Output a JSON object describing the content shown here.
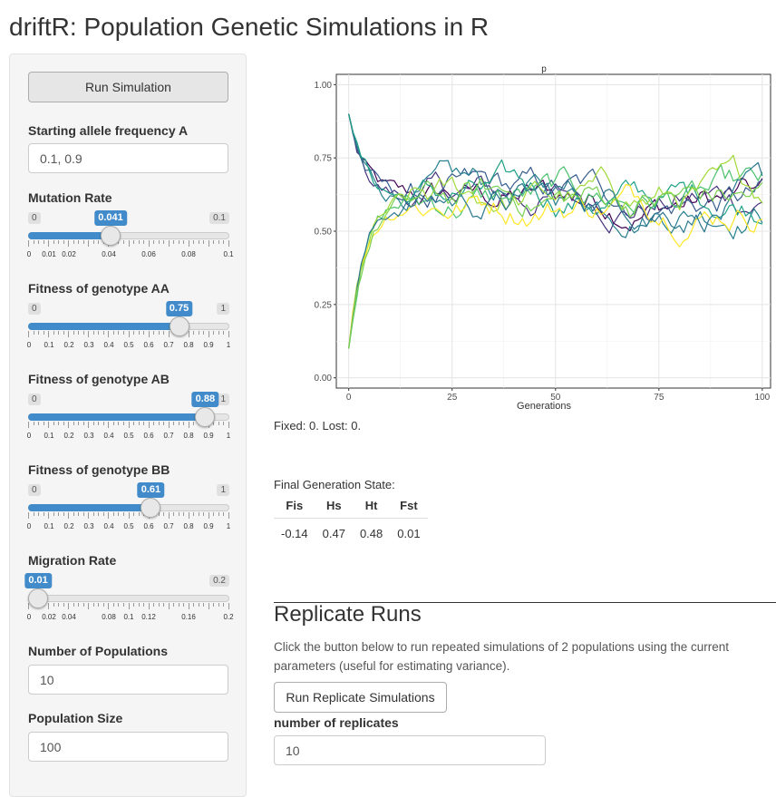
{
  "app_title": "driftR: Population Genetic Simulations in R",
  "sidebar": {
    "run_button": "Run Simulation",
    "start_freq": {
      "label": "Starting allele frequency A",
      "value": "0.1, 0.9"
    },
    "sliders": [
      {
        "label": "Mutation Rate",
        "min_label": "0",
        "max_label": "0.1",
        "value_label": "0.041",
        "fraction": 0.41,
        "ticks": [
          "0",
          "0.01",
          "0.02",
          "0.04",
          "0.06",
          "0.08",
          "0.1"
        ]
      },
      {
        "label": "Fitness of genotype AA",
        "min_label": "0",
        "max_label": "1",
        "value_label": "0.75",
        "fraction": 0.75,
        "ticks": [
          "0",
          "0.1",
          "0.2",
          "0.3",
          "0.4",
          "0.5",
          "0.6",
          "0.7",
          "0.8",
          "0.9",
          "1"
        ]
      },
      {
        "label": "Fitness of genotype AB",
        "min_label": "0",
        "max_label": "1",
        "value_label": "0.88",
        "fraction": 0.88,
        "ticks": [
          "0",
          "0.1",
          "0.2",
          "0.3",
          "0.4",
          "0.5",
          "0.6",
          "0.7",
          "0.8",
          "0.9",
          "1"
        ]
      },
      {
        "label": "Fitness of genotype BB",
        "min_label": "0",
        "max_label": "1",
        "value_label": "0.61",
        "fraction": 0.61,
        "ticks": [
          "0",
          "0.1",
          "0.2",
          "0.3",
          "0.4",
          "0.5",
          "0.6",
          "0.7",
          "0.8",
          "0.9",
          "1"
        ]
      },
      {
        "label": "Migration Rate",
        "min_label": "",
        "max_label": "0.2",
        "value_label": "0.01",
        "fraction": 0.05,
        "ticks": [
          "0",
          "0.02",
          "0.04",
          "0.08",
          "0.1",
          "0.12",
          "0.16",
          "0.2"
        ]
      }
    ],
    "num_populations": {
      "label": "Number of Populations",
      "value": "10"
    },
    "population_size": {
      "label": "Population Size",
      "value": "100"
    }
  },
  "plot": {
    "title": "p",
    "xlabel": "Generations",
    "x_ticks": [
      "0",
      "25",
      "50",
      "75",
      "100"
    ],
    "y_ticks": [
      "0.00",
      "0.25",
      "0.50",
      "0.75",
      "1.00"
    ]
  },
  "results": {
    "fixed_lost": "Fixed: 0. Lost: 0.",
    "final_state_caption": "Final Generation State:",
    "table": {
      "headers": [
        "Fis",
        "Hs",
        "Ht",
        "Fst"
      ],
      "values": [
        "-0.14",
        "0.47",
        "0.48",
        "0.01"
      ]
    }
  },
  "replicates": {
    "heading": "Replicate Runs",
    "description": "Click the button below to run repeated simulations of 2 populations using the current parameters (useful for estimating variance).",
    "button": "Run Replicate Simulations",
    "num_label": "number of replicates",
    "num_value": "10"
  },
  "colors": {
    "accent": "#428bca",
    "series": [
      "#440154",
      "#46337e",
      "#365c8d",
      "#277f8e",
      "#1fa187",
      "#4ac16d",
      "#a0da39",
      "#fde725",
      "#2a788e",
      "#7ad151"
    ]
  },
  "chart_data": {
    "type": "line",
    "title": "p",
    "xlabel": "Generations",
    "ylabel": "",
    "xlim": [
      0,
      100
    ],
    "ylim": [
      0,
      1
    ],
    "grid": true,
    "series_start": [
      0.9,
      0.9,
      0.9,
      0.9,
      0.9,
      0.1,
      0.1,
      0.1,
      0.1,
      0.1
    ],
    "series_equilibrium": 0.61,
    "generations": 100
  }
}
